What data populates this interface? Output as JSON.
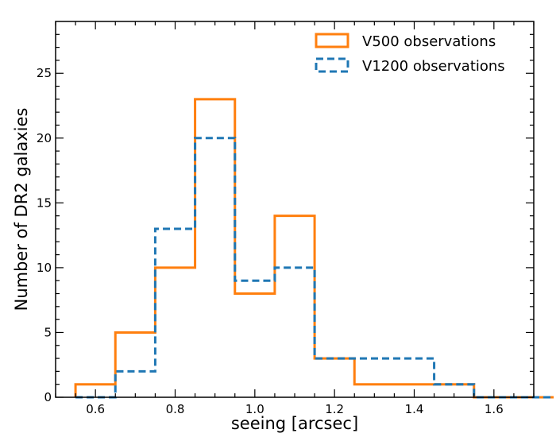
{
  "chart_data": {
    "type": "histogram",
    "title": "",
    "xlabel": "seeing [arcsec]",
    "ylabel": "Number of DR2 galaxies",
    "xlim": [
      0.5,
      1.7
    ],
    "ylim": [
      0,
      29
    ],
    "xticks": [
      0.6,
      0.8,
      1.0,
      1.2,
      1.4,
      1.6
    ],
    "xtick_labels": [
      "0.6",
      "0.8",
      "1.0",
      "1.2",
      "1.4",
      "1.6"
    ],
    "yticks": [
      0,
      5,
      10,
      15,
      20,
      25
    ],
    "ytick_labels": [
      "0",
      "5",
      "10",
      "15",
      "20",
      "25"
    ],
    "bin_edges": [
      0.55,
      0.65,
      0.75,
      0.85,
      0.95,
      1.05,
      1.15,
      1.25,
      1.35,
      1.45,
      1.55,
      1.65,
      1.75
    ],
    "series": [
      {
        "name": "V500 observations",
        "color": "#ff7f0e",
        "linestyle": "solid",
        "counts": [
          1,
          5,
          10,
          23,
          8,
          14,
          3,
          1,
          1,
          1,
          0,
          0
        ]
      },
      {
        "name": "V1200 observations",
        "color": "#1f77b4",
        "linestyle": "dashed",
        "counts": [
          0,
          2,
          13,
          20,
          9,
          10,
          3,
          3,
          3,
          1,
          0,
          0
        ]
      }
    ],
    "legend_position": "top-right",
    "grid": false
  }
}
